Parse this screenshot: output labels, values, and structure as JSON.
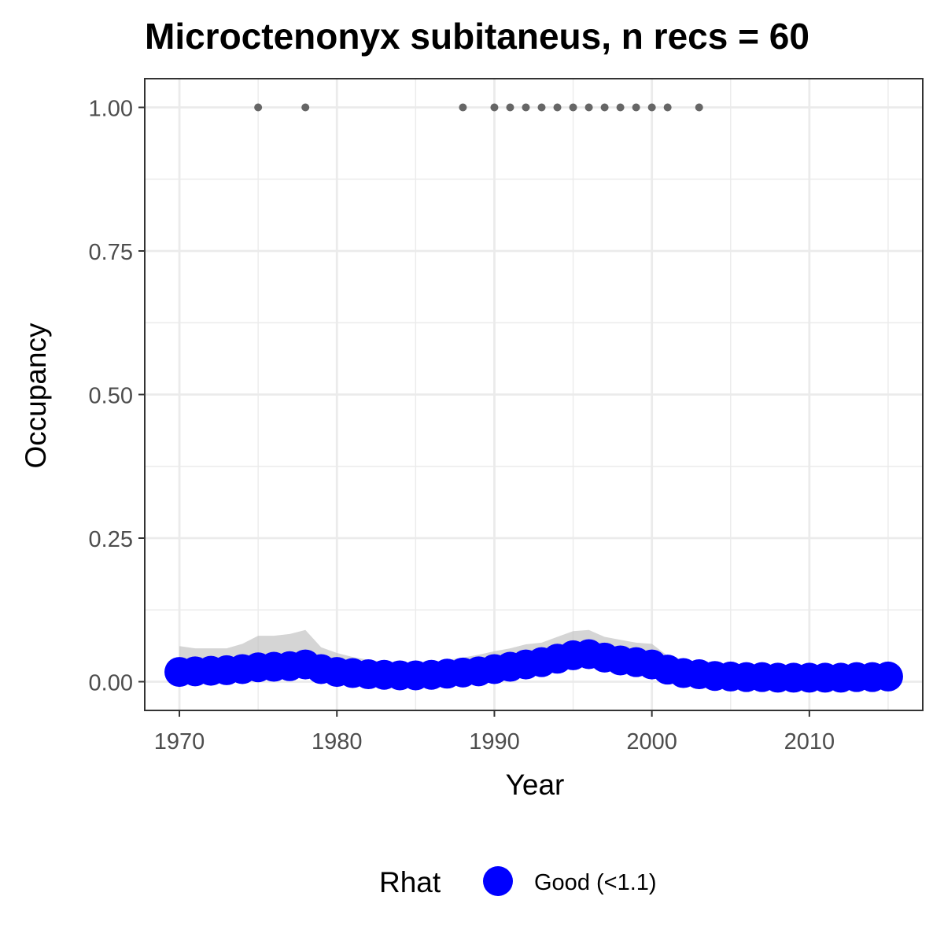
{
  "chart_data": {
    "type": "line",
    "title": "Microctenonyx subitaneus, n recs = 60",
    "xlabel": "Year",
    "ylabel": "Occupancy",
    "xlim": [
      1967.8,
      2017.2
    ],
    "ylim": [
      -0.05,
      1.05
    ],
    "x_ticks": [
      1970,
      1980,
      1990,
      2000,
      2010
    ],
    "x_tick_labels": [
      "1970",
      "1980",
      "1990",
      "2000",
      "2010"
    ],
    "y_ticks": [
      0,
      0.25,
      0.5,
      0.75,
      1.0
    ],
    "y_tick_labels": [
      "0.00",
      "0.25",
      "0.50",
      "0.75",
      "1.00"
    ],
    "grid": true,
    "legend": {
      "title": "Rhat",
      "placement": "bottom",
      "entries": [
        {
          "label": "Good (<1.1)",
          "color": "#0000ff"
        }
      ]
    },
    "x": [
      1970,
      1971,
      1972,
      1973,
      1974,
      1975,
      1976,
      1977,
      1978,
      1979,
      1980,
      1981,
      1982,
      1983,
      1984,
      1985,
      1986,
      1987,
      1988,
      1989,
      1990,
      1991,
      1992,
      1993,
      1994,
      1995,
      1996,
      1997,
      1998,
      1999,
      2000,
      2001,
      2002,
      2003,
      2004,
      2005,
      2006,
      2007,
      2008,
      2009,
      2010,
      2011,
      2012,
      2013,
      2014,
      2015
    ],
    "series": [
      {
        "values": [
          0.017,
          0.018,
          0.019,
          0.02,
          0.022,
          0.025,
          0.026,
          0.027,
          0.03,
          0.022,
          0.017,
          0.015,
          0.013,
          0.012,
          0.011,
          0.011,
          0.012,
          0.014,
          0.016,
          0.018,
          0.022,
          0.026,
          0.03,
          0.034,
          0.04,
          0.046,
          0.048,
          0.042,
          0.037,
          0.034,
          0.03,
          0.021,
          0.015,
          0.013,
          0.01,
          0.009,
          0.008,
          0.008,
          0.007,
          0.007,
          0.007,
          0.007,
          0.007,
          0.008,
          0.008,
          0.009
        ],
        "lower": [
          0.005,
          0.006,
          0.006,
          0.007,
          0.008,
          0.009,
          0.01,
          0.01,
          0.011,
          0.008,
          0.006,
          0.005,
          0.004,
          0.004,
          0.003,
          0.003,
          0.004,
          0.005,
          0.006,
          0.007,
          0.009,
          0.011,
          0.013,
          0.016,
          0.02,
          0.024,
          0.026,
          0.022,
          0.019,
          0.016,
          0.013,
          0.008,
          0.005,
          0.004,
          0.003,
          0.003,
          0.002,
          0.002,
          0.002,
          0.002,
          0.002,
          0.002,
          0.002,
          0.002,
          0.003,
          0.003
        ],
        "upper": [
          0.062,
          0.058,
          0.058,
          0.058,
          0.066,
          0.08,
          0.08,
          0.083,
          0.09,
          0.06,
          0.05,
          0.043,
          0.038,
          0.035,
          0.033,
          0.032,
          0.034,
          0.038,
          0.042,
          0.047,
          0.053,
          0.058,
          0.065,
          0.068,
          0.078,
          0.088,
          0.09,
          0.078,
          0.073,
          0.068,
          0.066,
          0.045,
          0.038,
          0.033,
          0.026,
          0.024,
          0.022,
          0.021,
          0.021,
          0.02,
          0.021,
          0.021,
          0.021,
          0.022,
          0.024,
          0.026
        ]
      }
    ],
    "records_years": [
      1975,
      1978,
      1988,
      1990,
      1991,
      1992,
      1993,
      1994,
      1995,
      1996,
      1997,
      1998,
      1999,
      2000,
      2001,
      2003
    ],
    "records_value": 1.0,
    "colors": {
      "line_points": "#0000ff",
      "ribbon": "#bebebe",
      "records": "#666666",
      "grid": "#ebebeb",
      "border": "#333333"
    }
  }
}
